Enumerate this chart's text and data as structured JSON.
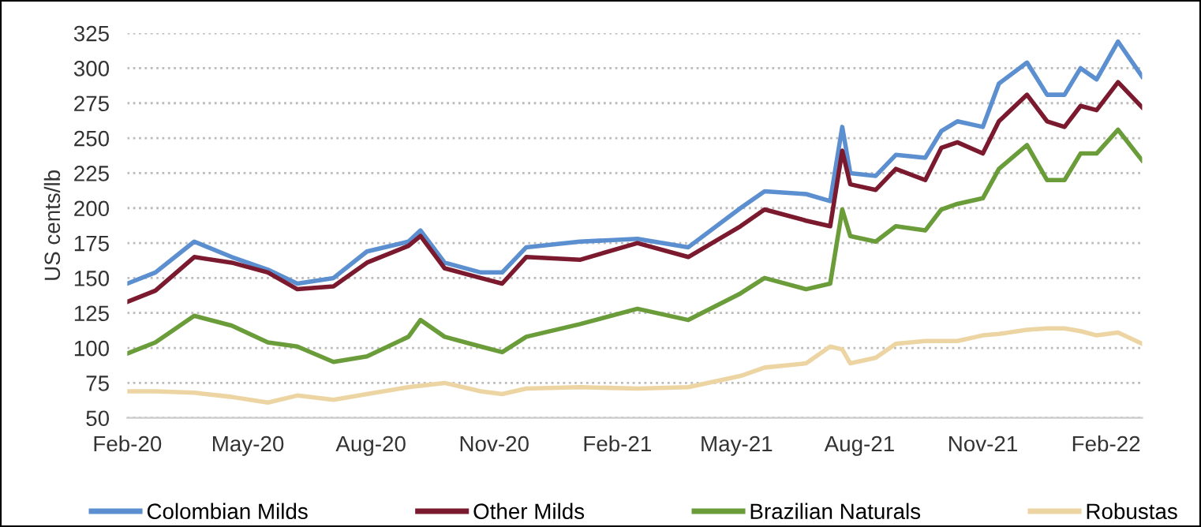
{
  "chart_data": {
    "type": "line",
    "ylabel": "US cents/lb",
    "x": [
      "2020-02-01",
      "2020-02-22",
      "2020-03-22",
      "2020-04-19",
      "2020-05-16",
      "2020-06-07",
      "2020-07-04",
      "2020-07-29",
      "2020-08-29",
      "2020-09-07",
      "2020-09-25",
      "2020-10-22",
      "2020-11-07",
      "2020-11-25",
      "2021-01-04",
      "2021-02-16",
      "2021-03-26",
      "2021-05-04",
      "2021-05-22",
      "2021-06-22",
      "2021-07-10",
      "2021-07-19",
      "2021-07-25",
      "2021-08-13",
      "2021-08-28",
      "2021-09-19",
      "2021-10-01",
      "2021-10-13",
      "2021-11-01",
      "2021-11-13",
      "2021-12-04",
      "2021-12-19",
      "2022-01-01",
      "2022-01-13",
      "2022-01-25",
      "2022-02-10",
      "2022-02-28"
    ],
    "series": [
      {
        "name": "Colombian Milds",
        "color": "#5b8fd0",
        "values": [
          146,
          154,
          176,
          165,
          156,
          146,
          150,
          169,
          176,
          184,
          161,
          154,
          154,
          172,
          176,
          178,
          172,
          200,
          212,
          210,
          205,
          258,
          225,
          223,
          238,
          236,
          255,
          262,
          258,
          289,
          304,
          281,
          281,
          300,
          292,
          319,
          294
        ]
      },
      {
        "name": "Other Milds",
        "color": "#7b1a2e",
        "values": [
          133,
          141,
          165,
          161,
          154,
          142,
          144,
          161,
          173,
          180,
          157,
          150,
          146,
          165,
          163,
          175,
          165,
          187,
          199,
          191,
          187,
          241,
          217,
          213,
          228,
          220,
          243,
          247,
          239,
          262,
          281,
          262,
          258,
          273,
          270,
          290,
          272
        ]
      },
      {
        "name": "Brazilian Naturals",
        "color": "#6a9c3a",
        "values": [
          96,
          104,
          123,
          116,
          104,
          101,
          90,
          94,
          108,
          120,
          108,
          101,
          97,
          108,
          117,
          128,
          120,
          139,
          150,
          142,
          146,
          199,
          180,
          176,
          187,
          184,
          199,
          203,
          207,
          228,
          245,
          220,
          220,
          239,
          239,
          256,
          234
        ]
      },
      {
        "name": "Robustas",
        "color": "#ecd5a3",
        "values": [
          69,
          69,
          68,
          65,
          61,
          66,
          63,
          67,
          72,
          73,
          75,
          69,
          67,
          71,
          72,
          71,
          72,
          80,
          86,
          89,
          101,
          99,
          89,
          93,
          103,
          105,
          105,
          105,
          109,
          110,
          113,
          114,
          114,
          112,
          109,
          111,
          103
        ]
      }
    ],
    "xlim": [
      "2020-02-01",
      "2022-02-28"
    ],
    "xticks": [
      {
        "value": "2020-02-01",
        "label": "Feb-20"
      },
      {
        "value": "2020-05-01",
        "label": "May-20"
      },
      {
        "value": "2020-08-01",
        "label": "Aug-20"
      },
      {
        "value": "2020-11-01",
        "label": "Nov-20"
      },
      {
        "value": "2021-02-01",
        "label": "Feb-21"
      },
      {
        "value": "2021-05-01",
        "label": "May-21"
      },
      {
        "value": "2021-08-01",
        "label": "Aug-21"
      },
      {
        "value": "2021-11-01",
        "label": "Nov-21"
      },
      {
        "value": "2022-02-01",
        "label": "Feb-22"
      }
    ],
    "ylim": [
      50,
      325
    ],
    "yticks": [
      50,
      75,
      100,
      125,
      150,
      175,
      200,
      225,
      250,
      275,
      300,
      325
    ],
    "grid": "y",
    "legend": "bottom",
    "marker": "none",
    "line_style": "solid"
  }
}
